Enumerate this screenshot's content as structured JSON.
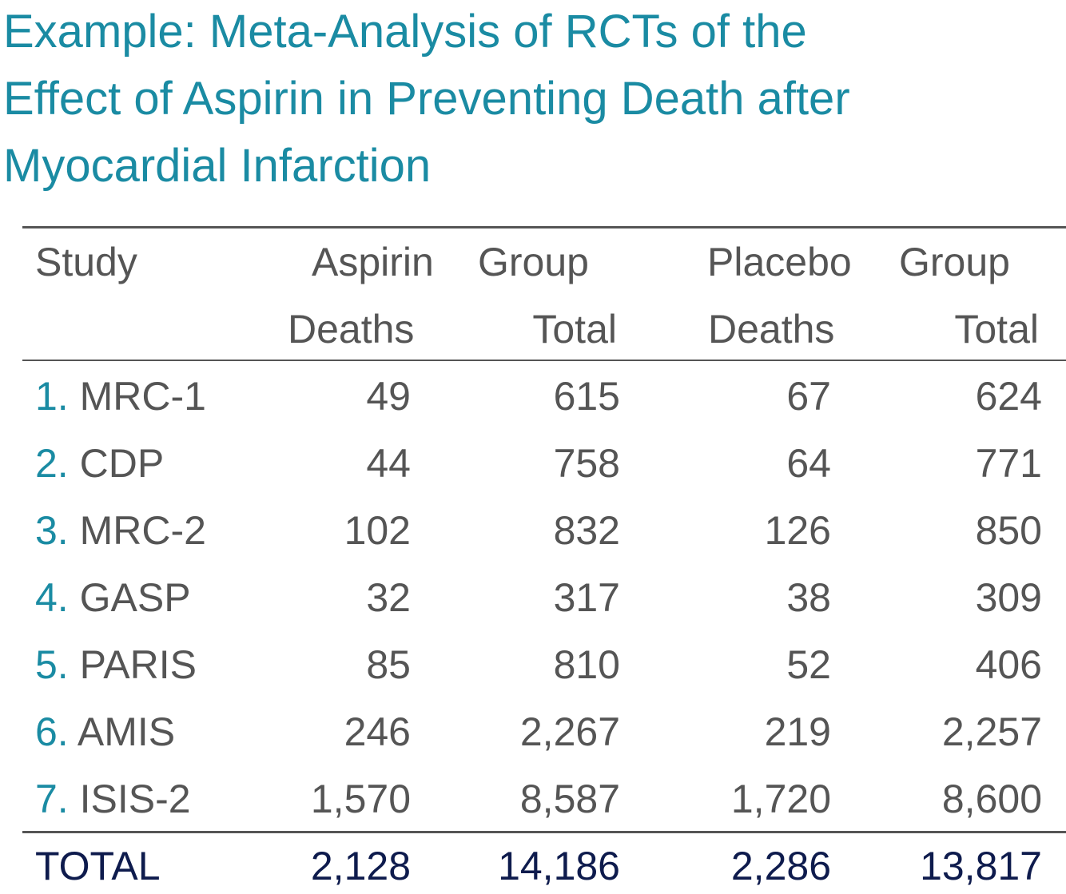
{
  "title_lines": [
    "Example: Meta-Analysis of RCTs of the",
    "Effect of Aspirin in Preventing Death after",
    "Myocardial Infarction"
  ],
  "table": {
    "header": {
      "study": "Study",
      "aspirin": "Aspirin",
      "group_a": "Group",
      "placebo": "Placebo",
      "group_p": "Group",
      "a_deaths": "Deaths",
      "a_total": "Total",
      "p_deaths": "Deaths",
      "p_total": "Total"
    },
    "rows": [
      {
        "num": "1.",
        "name": "MRC-1",
        "a_deaths": "49",
        "a_total": "615",
        "p_deaths": "67",
        "p_total": "624"
      },
      {
        "num": "2.",
        "name": "CDP",
        "a_deaths": "44",
        "a_total": "758",
        "p_deaths": "64",
        "p_total": "771"
      },
      {
        "num": "3.",
        "name": "MRC-2",
        "a_deaths": "102",
        "a_total": "832",
        "p_deaths": "126",
        "p_total": "850"
      },
      {
        "num": "4.",
        "name": "GASP",
        "a_deaths": "32",
        "a_total": "317",
        "p_deaths": "38",
        "p_total": "309"
      },
      {
        "num": "5.",
        "name": "PARIS",
        "a_deaths": "85",
        "a_total": "810",
        "p_deaths": "52",
        "p_total": "406"
      },
      {
        "num": "6.",
        "name": "AMIS",
        "a_deaths": "246",
        "a_total": "2,267",
        "p_deaths": "219",
        "p_total": "2,257"
      },
      {
        "num": "7.",
        "name": "ISIS-2",
        "a_deaths": "1,570",
        "a_total": "8,587",
        "p_deaths": "1,720",
        "p_total": "8,600"
      }
    ],
    "total": {
      "label": "TOTAL",
      "a_deaths": "2,128",
      "a_total": "14,186",
      "p_deaths": "2,286",
      "p_total": "13,817"
    }
  },
  "colors": {
    "title": "#1a8ba3",
    "text": "#555555",
    "total": "#0e1b4d",
    "rule": "#555555"
  }
}
